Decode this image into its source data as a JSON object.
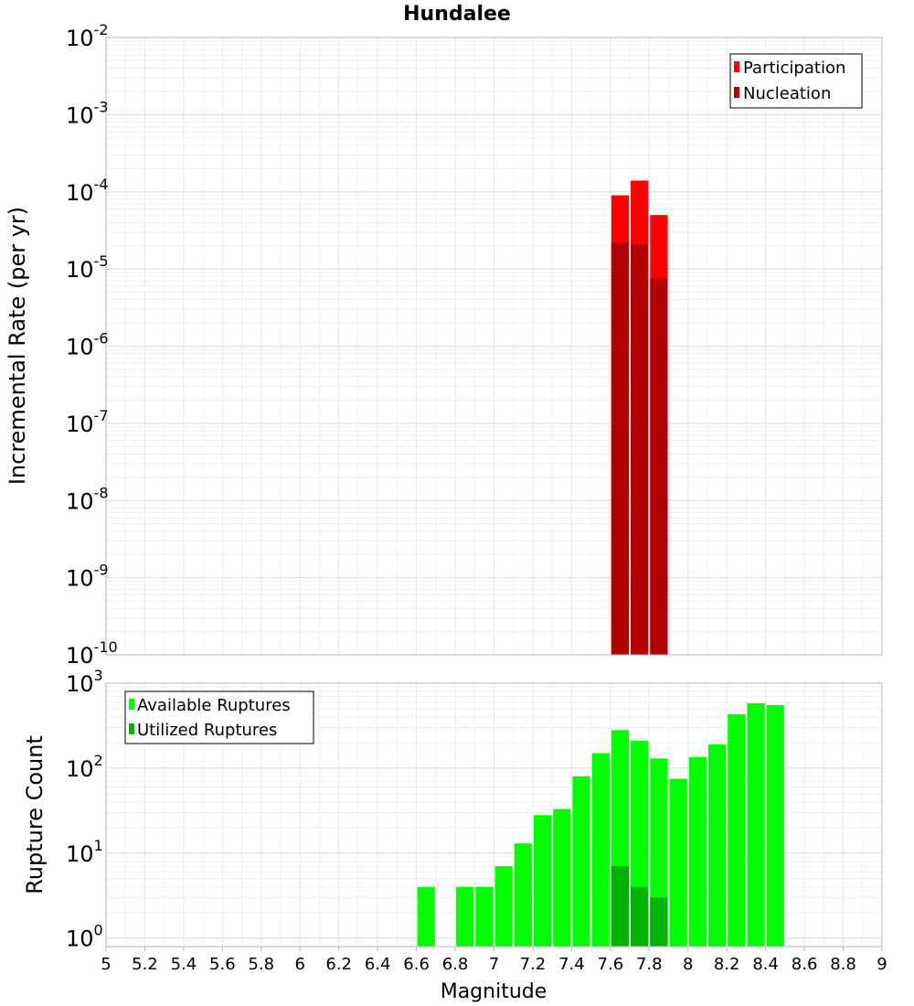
{
  "title": "Hundalee",
  "chart_data": [
    {
      "type": "bar",
      "scale": "log",
      "ylabel": "Incremental Rate (per yr)",
      "xlabel": "",
      "xlim": [
        5,
        9
      ],
      "ylim_exp": [
        -10,
        -2
      ],
      "ytick_labels": [
        {
          "base": "10",
          "exp": "-10",
          "value_exp": -10
        },
        {
          "base": "10",
          "exp": "-9",
          "value_exp": -9
        },
        {
          "base": "10",
          "exp": "-8",
          "value_exp": -8
        },
        {
          "base": "10",
          "exp": "-7",
          "value_exp": -7
        },
        {
          "base": "10",
          "exp": "-6",
          "value_exp": -6
        },
        {
          "base": "10",
          "exp": "-5",
          "value_exp": -5
        },
        {
          "base": "10",
          "exp": "-4",
          "value_exp": -4
        },
        {
          "base": "10",
          "exp": "-3",
          "value_exp": -3
        },
        {
          "base": "10",
          "exp": "-2",
          "value_exp": -2
        }
      ],
      "legend_position": "top-right",
      "series": [
        {
          "name": "Participation",
          "color": "#ff0000",
          "bars": [
            {
              "x": 7.65,
              "y": 9e-05
            },
            {
              "x": 7.75,
              "y": 0.00014
            },
            {
              "x": 7.85,
              "y": 5e-05
            }
          ]
        },
        {
          "name": "Nucleation",
          "color": "#b30000",
          "bars": [
            {
              "x": 7.65,
              "y": 2.2e-05
            },
            {
              "x": 7.75,
              "y": 2.1e-05
            },
            {
              "x": 7.85,
              "y": 7.5e-06
            }
          ]
        }
      ]
    },
    {
      "type": "bar",
      "scale": "log",
      "ylabel": "Rupture Count",
      "xlabel": "Magnitude",
      "xlim": [
        5,
        9
      ],
      "ylim_exp": [
        -0.1,
        3
      ],
      "ytick_labels": [
        {
          "base": "10",
          "exp": "0",
          "value_exp": 0
        },
        {
          "base": "10",
          "exp": "1",
          "value_exp": 1
        },
        {
          "base": "10",
          "exp": "2",
          "value_exp": 2
        },
        {
          "base": "10",
          "exp": "3",
          "value_exp": 3
        }
      ],
      "xtick_labels": [
        "5",
        "5.2",
        "5.4",
        "5.6",
        "5.8",
        "6",
        "6.2",
        "6.4",
        "6.6",
        "6.8",
        "7",
        "7.2",
        "7.4",
        "7.6",
        "7.8",
        "8",
        "8.2",
        "8.4",
        "8.6",
        "8.8",
        "9"
      ],
      "legend_position": "top-left",
      "series": [
        {
          "name": "Available Ruptures",
          "color": "#00ff00",
          "bars": [
            {
              "x": 6.65,
              "y": 4
            },
            {
              "x": 6.85,
              "y": 4
            },
            {
              "x": 6.95,
              "y": 4
            },
            {
              "x": 7.05,
              "y": 7
            },
            {
              "x": 7.15,
              "y": 13
            },
            {
              "x": 7.25,
              "y": 28
            },
            {
              "x": 7.35,
              "y": 33
            },
            {
              "x": 7.45,
              "y": 80
            },
            {
              "x": 7.55,
              "y": 150
            },
            {
              "x": 7.65,
              "y": 280
            },
            {
              "x": 7.75,
              "y": 210
            },
            {
              "x": 7.85,
              "y": 130
            },
            {
              "x": 7.95,
              "y": 75
            },
            {
              "x": 8.05,
              "y": 135
            },
            {
              "x": 8.15,
              "y": 190
            },
            {
              "x": 8.25,
              "y": 430
            },
            {
              "x": 8.35,
              "y": 580
            },
            {
              "x": 8.45,
              "y": 550
            }
          ]
        },
        {
          "name": "Utilized Ruptures",
          "color": "#00b300",
          "bars": [
            {
              "x": 7.65,
              "y": 7
            },
            {
              "x": 7.75,
              "y": 4
            },
            {
              "x": 7.85,
              "y": 3
            }
          ]
        }
      ]
    }
  ]
}
